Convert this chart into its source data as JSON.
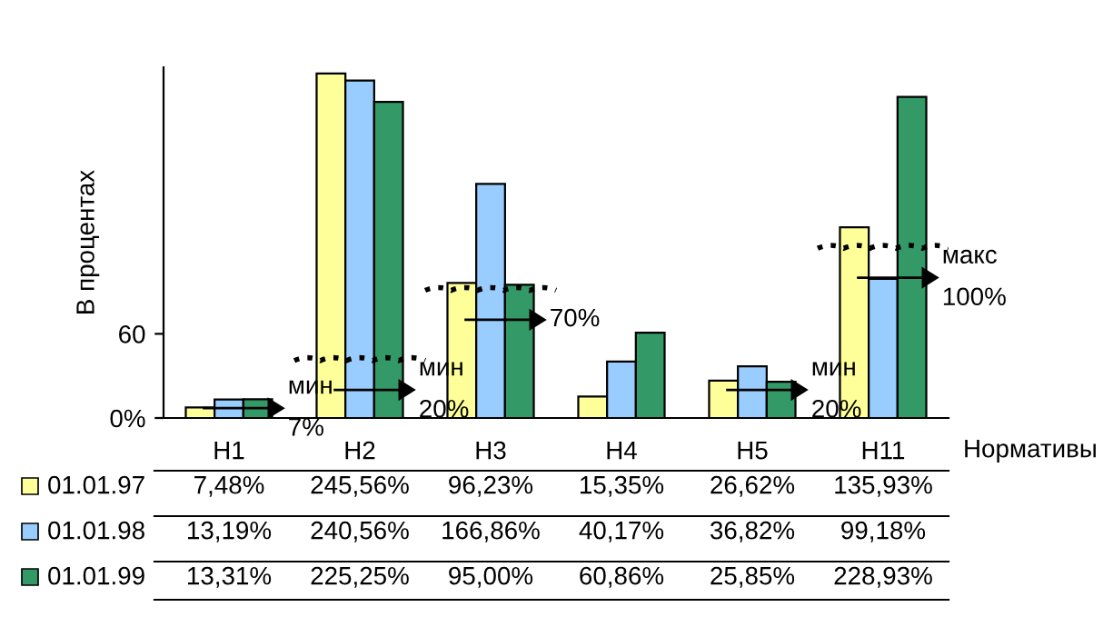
{
  "chart_data": {
    "type": "bar",
    "ylabel": "В процентах",
    "xlabel": "Нормативы",
    "categories": [
      "H1",
      "H2",
      "H3",
      "H4",
      "H5",
      "H11"
    ],
    "series": [
      {
        "name": "01.01.97",
        "color": "#ffff99",
        "values": [
          7.48,
          245.56,
          96.23,
          15.35,
          26.62,
          135.93
        ],
        "value_labels": [
          "7,48%",
          "245,56%",
          "96,23%",
          "15,35%",
          "26,62%",
          "135,93%"
        ]
      },
      {
        "name": "01.01.98",
        "color": "#99ccff",
        "values": [
          13.19,
          240.56,
          166.86,
          40.17,
          36.82,
          99.18
        ],
        "value_labels": [
          "13,19%",
          "240,56%",
          "166,86%",
          "40,17%",
          "36,82%",
          "99,18%"
        ]
      },
      {
        "name": "01.01.99",
        "color": "#339966",
        "values": [
          13.31,
          225.25,
          95.0,
          60.86,
          25.85,
          228.93
        ],
        "value_labels": [
          "13,31%",
          "225,25%",
          "95,00%",
          "60,86%",
          "25,85%",
          "228,93%"
        ]
      }
    ],
    "ylim": [
      0,
      250
    ],
    "yticks": [
      {
        "value": 0,
        "label": "0%"
      },
      60
    ],
    "annotations": [
      {
        "text": "мин\n7%",
        "x": "H1",
        "y": 7
      },
      {
        "text": "мин\n20%",
        "x": "H2",
        "y": 20
      },
      {
        "text": "70%",
        "x": "H3",
        "y": 70
      },
      {
        "text": "мин\n20%",
        "x": "H5",
        "y": 20
      },
      {
        "text": "макс\n100%",
        "x": "H11",
        "y": 100
      }
    ],
    "ref_lines": [
      {
        "axis": "y",
        "value": 7
      },
      {
        "axis": "y",
        "value": 20
      },
      {
        "axis": "y",
        "value": 70
      },
      {
        "axis": "y",
        "value": 100
      }
    ],
    "grid": false,
    "legend": "bottom left"
  }
}
